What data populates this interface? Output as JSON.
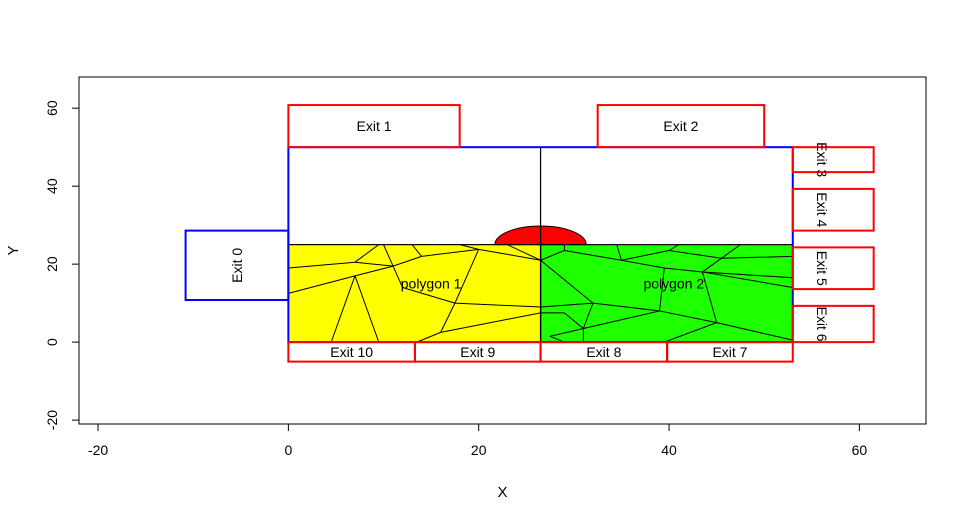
{
  "chart_data": {
    "type": "scatter",
    "title": "",
    "xlabel": "X",
    "ylabel": "Y",
    "xlim": [
      -22,
      67
    ],
    "ylim": [
      -21,
      68
    ],
    "xticks": [
      -20,
      0,
      20,
      40,
      60
    ],
    "yticks": [
      -20,
      0,
      20,
      40,
      60
    ],
    "grid": false,
    "colors": {
      "blue": "#0000ff",
      "red": "#ff0000",
      "yellow": "#ffff00",
      "green": "#1eff00",
      "black": "#000000"
    },
    "room": {
      "x1": 0,
      "y1": 0,
      "x2": 53,
      "y2": 50
    },
    "divider_x": 26.5,
    "entrance": {
      "label": "Exit 0",
      "x1": -10.8,
      "y1": 10.8,
      "x2": 0,
      "y2": 28.6
    },
    "semicircle": {
      "cx": 26.5,
      "cy": 25,
      "r": 4.8
    },
    "exits": [
      {
        "label": "Exit 1",
        "x1": 0,
        "y1": 50,
        "x2": 18,
        "y2": 60.8,
        "orient": "h"
      },
      {
        "label": "Exit 2",
        "x1": 32.5,
        "y1": 50,
        "x2": 50,
        "y2": 60.8,
        "orient": "h"
      },
      {
        "label": "Exit 3",
        "x1": 53,
        "y1": 43.6,
        "x2": 61.5,
        "y2": 50,
        "orient": "v"
      },
      {
        "label": "Exit 4",
        "x1": 53,
        "y1": 28.6,
        "x2": 61.5,
        "y2": 39.3,
        "orient": "v"
      },
      {
        "label": "Exit 5",
        "x1": 53,
        "y1": 13.6,
        "x2": 61.5,
        "y2": 24.3,
        "orient": "v"
      },
      {
        "label": "Exit 6",
        "x1": 53,
        "y1": 0,
        "x2": 61.5,
        "y2": 9.3,
        "orient": "v"
      },
      {
        "label": "Exit 7",
        "x1": 39.8,
        "y1": -5,
        "x2": 53,
        "y2": 0,
        "orient": "h"
      },
      {
        "label": "Exit 8",
        "x1": 26.5,
        "y1": -5,
        "x2": 39.8,
        "y2": 0,
        "orient": "h"
      },
      {
        "label": "Exit 9",
        "x1": 13.3,
        "y1": -5,
        "x2": 26.5,
        "y2": 0,
        "orient": "h"
      },
      {
        "label": "Exit 10",
        "x1": 0,
        "y1": -5,
        "x2": 13.3,
        "y2": 0,
        "orient": "h"
      }
    ],
    "polygons": [
      {
        "label": "polygon 1",
        "label_x": 15,
        "label_y": 15,
        "x1": 0,
        "y1": 0,
        "x2": 26.5,
        "y2": 25,
        "edges": [
          [
            [
              0,
              19
            ],
            [
              7,
              20.5
            ]
          ],
          [
            [
              7,
              20.5
            ],
            [
              9.5,
              25
            ]
          ],
          [
            [
              7,
              20.5
            ],
            [
              11,
              19.5
            ]
          ],
          [
            [
              11,
              19.5
            ],
            [
              10,
              25
            ]
          ],
          [
            [
              11,
              19.5
            ],
            [
              14,
              22
            ]
          ],
          [
            [
              14,
              22
            ],
            [
              13,
              25
            ]
          ],
          [
            [
              14,
              22
            ],
            [
              20,
              23.8
            ]
          ],
          [
            [
              20,
              23.8
            ],
            [
              18,
              25
            ]
          ],
          [
            [
              20,
              23.8
            ],
            [
              26.5,
              21
            ]
          ],
          [
            [
              26.5,
              21
            ],
            [
              23,
              25
            ]
          ],
          [
            [
              0,
              12.5
            ],
            [
              7,
              17
            ]
          ],
          [
            [
              7,
              17
            ],
            [
              11,
              19.5
            ]
          ],
          [
            [
              7,
              17
            ],
            [
              4.5,
              0
            ]
          ],
          [
            [
              7,
              17
            ],
            [
              9.5,
              0
            ]
          ],
          [
            [
              11,
              19.5
            ],
            [
              12,
              14
            ]
          ],
          [
            [
              12,
              14
            ],
            [
              17.5,
              10
            ]
          ],
          [
            [
              17.5,
              10
            ],
            [
              16,
              2.5
            ]
          ],
          [
            [
              17.5,
              10
            ],
            [
              20,
              23.8
            ]
          ],
          [
            [
              17.5,
              10
            ],
            [
              26.5,
              9
            ]
          ],
          [
            [
              16,
              2.5
            ],
            [
              26.5,
              7.5
            ]
          ],
          [
            [
              16,
              2.5
            ],
            [
              13.5,
              0
            ]
          ]
        ]
      },
      {
        "label": "polygon 2",
        "label_x": 40.5,
        "label_y": 15,
        "x1": 26.5,
        "y1": 0,
        "x2": 53,
        "y2": 25,
        "edges": [
          [
            [
              26.5,
              21
            ],
            [
              29,
              23.5
            ]
          ],
          [
            [
              29,
              23.5
            ],
            [
              29,
              25
            ]
          ],
          [
            [
              29,
              23.5
            ],
            [
              35,
              21
            ]
          ],
          [
            [
              35,
              21
            ],
            [
              34.5,
              25
            ]
          ],
          [
            [
              35,
              21
            ],
            [
              40,
              23.5
            ]
          ],
          [
            [
              40,
              23.5
            ],
            [
              41,
              25
            ]
          ],
          [
            [
              40,
              23.5
            ],
            [
              45.5,
              21.5
            ]
          ],
          [
            [
              45.5,
              21.5
            ],
            [
              47.5,
              25
            ]
          ],
          [
            [
              45.5,
              21.5
            ],
            [
              53,
              22
            ]
          ],
          [
            [
              45.5,
              21.5
            ],
            [
              43.5,
              18
            ]
          ],
          [
            [
              43.5,
              18
            ],
            [
              53,
              16.5
            ]
          ],
          [
            [
              43.5,
              18
            ],
            [
              53,
              14
            ]
          ],
          [
            [
              43.5,
              18
            ],
            [
              39.5,
              19
            ]
          ],
          [
            [
              39.5,
              19
            ],
            [
              35,
              21
            ]
          ],
          [
            [
              26.5,
              21
            ],
            [
              32,
              10
            ]
          ],
          [
            [
              26.5,
              9
            ],
            [
              32,
              10
            ]
          ],
          [
            [
              32,
              10
            ],
            [
              39,
              8
            ]
          ],
          [
            [
              39,
              8
            ],
            [
              39.5,
              19
            ]
          ],
          [
            [
              39,
              8
            ],
            [
              45,
              5
            ]
          ],
          [
            [
              43.5,
              18
            ],
            [
              45,
              5
            ]
          ],
          [
            [
              45,
              5
            ],
            [
              53,
              0.5
            ]
          ],
          [
            [
              45,
              5
            ],
            [
              39.5,
              0
            ]
          ],
          [
            [
              32,
              10
            ],
            [
              31,
              3.5
            ]
          ],
          [
            [
              31,
              3.5
            ],
            [
              27.5,
              1.5
            ]
          ],
          [
            [
              27.5,
              1.5
            ],
            [
              29,
              0
            ]
          ],
          [
            [
              31,
              3.5
            ],
            [
              31,
              0
            ]
          ],
          [
            [
              31,
              3.5
            ],
            [
              39,
              8
            ]
          ],
          [
            [
              26.5,
              7.5
            ],
            [
              29,
              7.5
            ]
          ],
          [
            [
              29,
              7.5
            ],
            [
              31,
              3.5
            ]
          ]
        ]
      }
    ]
  }
}
